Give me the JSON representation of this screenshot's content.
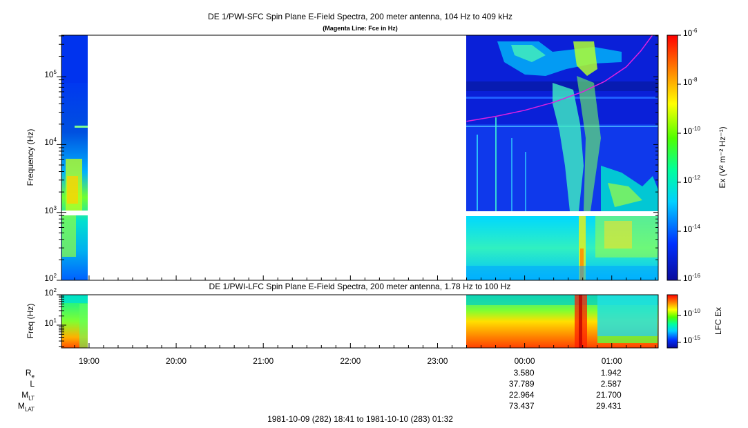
{
  "chart_data": [
    {
      "type": "heatmap",
      "title": "DE 1/PWI-SFC  Spin Plane E-Field Spectra, 200 meter antenna, 104 Hz to 409 kHz",
      "subtitle": "(Magenta Line: Fce in Hz)",
      "ylabel": "Frequency (Hz)",
      "yscale": "log",
      "ylim": [
        100,
        409000
      ],
      "yticks": [
        {
          "value": 100,
          "base": "10",
          "exp": "2"
        },
        {
          "value": 1000,
          "base": "10",
          "exp": "3"
        },
        {
          "value": 10000,
          "base": "10",
          "exp": "4"
        },
        {
          "value": 100000,
          "base": "10",
          "exp": "5"
        }
      ],
      "colorbar": {
        "label": "Ex (V² m⁻² Hz⁻¹)",
        "scale": "log",
        "range": [
          1e-16,
          1e-06
        ],
        "ticks": [
          {
            "base": "10",
            "exp": "-6"
          },
          {
            "base": "10",
            "exp": "-8"
          },
          {
            "base": "10",
            "exp": "-10"
          },
          {
            "base": "10",
            "exp": "-12"
          },
          {
            "base": "10",
            "exp": "-14"
          },
          {
            "base": "10",
            "exp": "-16"
          }
        ]
      },
      "data_gap": [
        "18:59",
        "23:20"
      ],
      "series": [
        {
          "name": "Fce",
          "color": "#e020e0",
          "x": [
            "23:20",
            "23:40",
            "00:00",
            "00:20",
            "00:40",
            "00:55",
            "01:10",
            "01:20",
            "01:28"
          ],
          "y": [
            22000,
            26000,
            32000,
            42000,
            60000,
            85000,
            140000,
            240000,
            409000
          ]
        }
      ]
    },
    {
      "type": "heatmap",
      "title": "DE 1/PWI-LFC  Spin Plane E-Field Spectra, 200 meter antenna, 1.78 Hz to 100 Hz",
      "ylabel": "Freq (Hz)",
      "yscale": "log",
      "ylim": [
        1.78,
        100
      ],
      "yticks": [
        {
          "value": 10,
          "base": "10",
          "exp": "1"
        },
        {
          "value": 100,
          "base": "10",
          "exp": "2"
        }
      ],
      "colorbar": {
        "label": "LFC Ex",
        "scale": "log",
        "ticks": [
          {
            "base": "10",
            "exp": "-10"
          },
          {
            "base": "10",
            "exp": "-15"
          }
        ]
      },
      "data_gap": [
        "18:59",
        "23:20"
      ]
    }
  ],
  "time_axis": {
    "start": "18:41",
    "end": "01:32",
    "tick_labels": [
      "19:00",
      "20:00",
      "21:00",
      "22:00",
      "23:00",
      "00:00",
      "01:00"
    ]
  },
  "ephemeris": {
    "labels": [
      {
        "main": "R",
        "sub": "e"
      },
      {
        "main": "L",
        "sub": ""
      },
      {
        "main": "M",
        "sub": "LT"
      },
      {
        "main": "M",
        "sub": "LAT"
      }
    ],
    "columns": [
      {
        "time": "00:00",
        "values": [
          "3.580",
          "37.789",
          "22.964",
          "73.437"
        ]
      },
      {
        "time": "01:00",
        "values": [
          "1.942",
          "2.587",
          "21.700",
          "29.431"
        ]
      }
    ]
  },
  "footer": "1981-10-09 (282) 18:41 to 1981-10-10 (283) 01:32"
}
